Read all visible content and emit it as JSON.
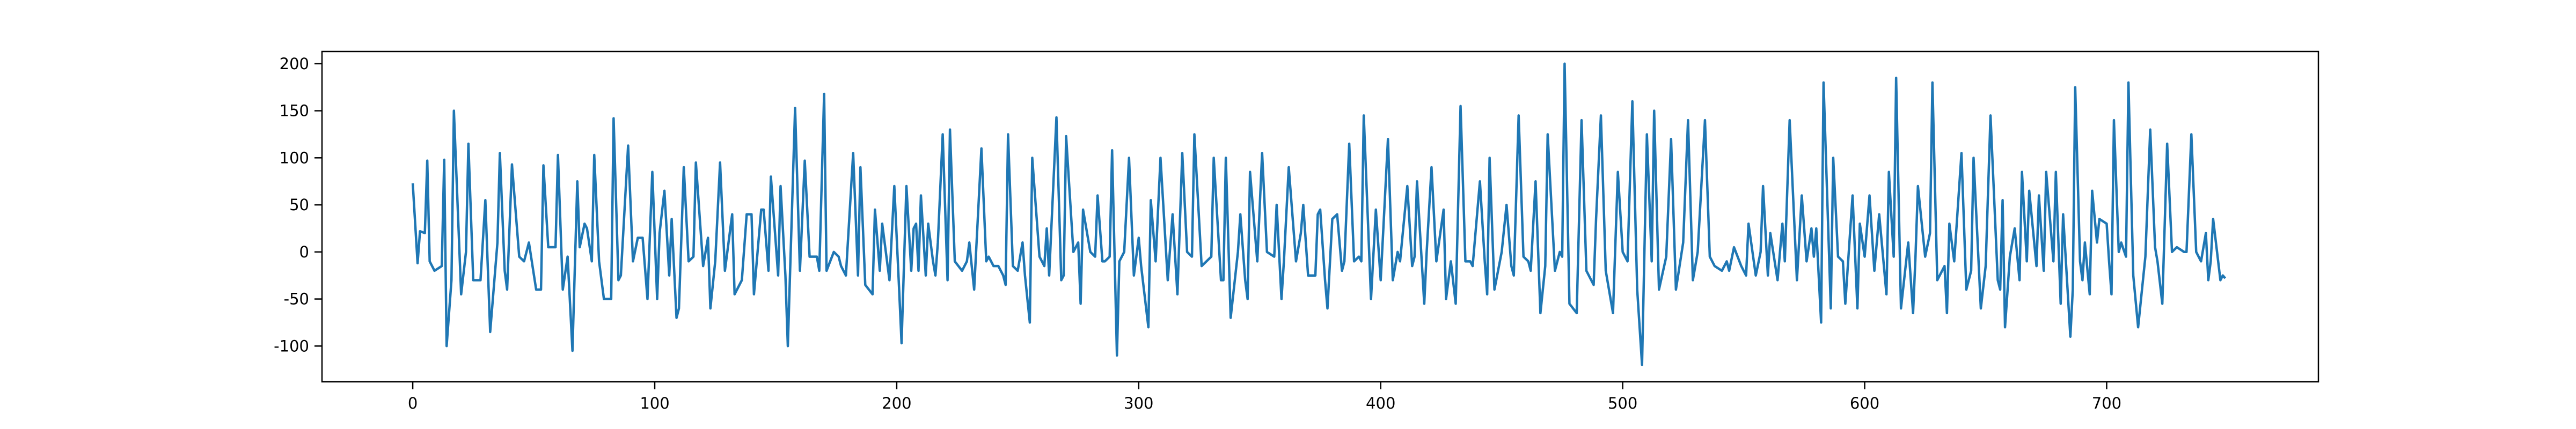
{
  "chart_data": {
    "type": "line",
    "color": "#1f77b4",
    "xlim": [
      -37.5,
      787.5
    ],
    "ylim": [
      -138,
      213
    ],
    "xticks": [
      0,
      100,
      200,
      300,
      400,
      500,
      600,
      700
    ],
    "yticks": [
      -100,
      -50,
      0,
      50,
      100,
      150,
      200
    ],
    "x": [
      0,
      2,
      3,
      5,
      6,
      7,
      9,
      12,
      13,
      14,
      16,
      17,
      20,
      22,
      23,
      25,
      28,
      30,
      32,
      35,
      36,
      38,
      39,
      41,
      44,
      46,
      48,
      51,
      53,
      54,
      56,
      59,
      60,
      62,
      64,
      66,
      68,
      69,
      71,
      72,
      74,
      75,
      77,
      79,
      82,
      83,
      85,
      86,
      89,
      91,
      93,
      95,
      97,
      99,
      101,
      102,
      104,
      106,
      107,
      109,
      110,
      112,
      114,
      116,
      117,
      120,
      122,
      123,
      125,
      127,
      129,
      131,
      132,
      133,
      136,
      138,
      140,
      141,
      144,
      145,
      147,
      148,
      151,
      152,
      154,
      155,
      158,
      160,
      162,
      164,
      167,
      168,
      170,
      171,
      174,
      176,
      177,
      179,
      182,
      184,
      185,
      187,
      190,
      191,
      193,
      194,
      197,
      198,
      199,
      201,
      202,
      204,
      206,
      207,
      208,
      209,
      210,
      212,
      213,
      215,
      216,
      217,
      219,
      221,
      222,
      224,
      227,
      229,
      230,
      232,
      235,
      237,
      238,
      240,
      242,
      244,
      245,
      246,
      248,
      250,
      252,
      253,
      255,
      256,
      259,
      261,
      262,
      263,
      266,
      268,
      269,
      270,
      273,
      275,
      276,
      277,
      280,
      282,
      283,
      285,
      286,
      288,
      289,
      291,
      292,
      294,
      296,
      298,
      300,
      301,
      304,
      305,
      307,
      309,
      312,
      314,
      316,
      318,
      320,
      322,
      323,
      326,
      328,
      330,
      331,
      334,
      335,
      336,
      338,
      341,
      342,
      344,
      345,
      346,
      349,
      351,
      353,
      356,
      357,
      359,
      360,
      362,
      365,
      367,
      368,
      370,
      373,
      374,
      375,
      377,
      378,
      380,
      382,
      384,
      385,
      387,
      389,
      391,
      392,
      393,
      396,
      398,
      400,
      403,
      405,
      407,
      408,
      411,
      413,
      414,
      415,
      418,
      419,
      421,
      423,
      426,
      427,
      429,
      431,
      433,
      435,
      437,
      438,
      441,
      443,
      444,
      445,
      447,
      450,
      452,
      454,
      455,
      457,
      459,
      461,
      462,
      464,
      466,
      468,
      469,
      472,
      474,
      475,
      476,
      478,
      481,
      483,
      485,
      488,
      489,
      491,
      493,
      496,
      498,
      500,
      502,
      504,
      506,
      508,
      510,
      512,
      513,
      515,
      518,
      520,
      522,
      525,
      527,
      529,
      531,
      534,
      536,
      538,
      541,
      543,
      544,
      546,
      549,
      551,
      552,
      555,
      557,
      558,
      560,
      561,
      564,
      566,
      567,
      569,
      572,
      574,
      576,
      578,
      579,
      580,
      582,
      583,
      586,
      587,
      589,
      591,
      592,
      595,
      597,
      598,
      600,
      602,
      604,
      606,
      609,
      610,
      612,
      613,
      615,
      618,
      620,
      621,
      622,
      625,
      627,
      628,
      630,
      633,
      634,
      635,
      637,
      640,
      642,
      644,
      645,
      648,
      650,
      652,
      655,
      656,
      657,
      658,
      660,
      662,
      664,
      665,
      667,
      668,
      671,
      672,
      674,
      675,
      678,
      679,
      681,
      682,
      685,
      686,
      687,
      689,
      690,
      691,
      693,
      694,
      696,
      697,
      700,
      701,
      702,
      703,
      705,
      706,
      708,
      709,
      711,
      713,
      716,
      718,
      720,
      721,
      723,
      725,
      727,
      729,
      732,
      733,
      735,
      737,
      739,
      741,
      742,
      743,
      744,
      747,
      748,
      749
    ],
    "values": [
      73,
      -12,
      22,
      20,
      97,
      -10,
      -20,
      -15,
      98,
      -100,
      -30,
      150,
      -45,
      0,
      115,
      -30,
      -30,
      55,
      -85,
      10,
      105,
      -20,
      -40,
      93,
      -5,
      -10,
      10,
      -40,
      -40,
      92,
      5,
      5,
      103,
      -40,
      -5,
      -105,
      75,
      5,
      30,
      25,
      -10,
      103,
      -10,
      -50,
      -50,
      142,
      -30,
      -25,
      113,
      -10,
      15,
      15,
      -50,
      85,
      -50,
      20,
      65,
      -25,
      35,
      -70,
      -60,
      90,
      -10,
      -5,
      95,
      -15,
      15,
      -60,
      -10,
      95,
      -20,
      20,
      40,
      -45,
      -30,
      40,
      40,
      -45,
      45,
      45,
      -20,
      80,
      -25,
      70,
      -25,
      -100,
      153,
      -20,
      97,
      -5,
      -5,
      -20,
      168,
      -20,
      0,
      -5,
      -15,
      -25,
      105,
      -25,
      90,
      -35,
      -45,
      45,
      -20,
      30,
      -30,
      20,
      70,
      -40,
      -97,
      70,
      -20,
      25,
      30,
      -20,
      60,
      -25,
      30,
      -10,
      -25,
      10,
      125,
      -30,
      130,
      -10,
      -20,
      -10,
      10,
      -40,
      110,
      -10,
      -5,
      -15,
      -15,
      -25,
      -35,
      125,
      -15,
      -20,
      10,
      -25,
      -75,
      100,
      -5,
      -15,
      25,
      -25,
      143,
      -30,
      -25,
      123,
      0,
      10,
      -55,
      45,
      0,
      -5,
      60,
      -10,
      -10,
      -5,
      108,
      -110,
      -10,
      0,
      100,
      -25,
      15,
      -15,
      -80,
      55,
      -10,
      100,
      -30,
      40,
      -45,
      105,
      0,
      -5,
      125,
      -15,
      -10,
      -5,
      100,
      -30,
      -30,
      100,
      -70,
      0,
      40,
      -30,
      -50,
      85,
      -10,
      105,
      0,
      -5,
      50,
      -50,
      -10,
      90,
      -10,
      20,
      50,
      -25,
      -25,
      40,
      45,
      -30,
      -60,
      35,
      40,
      -20,
      -10,
      115,
      -10,
      -5,
      -10,
      145,
      -50,
      45,
      -30,
      120,
      -30,
      0,
      -10,
      70,
      -15,
      -5,
      75,
      -55,
      0,
      90,
      -10,
      45,
      -50,
      -10,
      -55,
      155,
      -10,
      -10,
      -15,
      75,
      -10,
      -45,
      100,
      -40,
      0,
      50,
      -15,
      -25,
      145,
      -5,
      -10,
      -20,
      75,
      -65,
      -15,
      125,
      -20,
      0,
      -5,
      200,
      -55,
      -65,
      140,
      -20,
      -35,
      35,
      145,
      -20,
      -65,
      85,
      0,
      -10,
      160,
      -40,
      -120,
      125,
      -10,
      150,
      -40,
      -5,
      120,
      -40,
      10,
      140,
      -30,
      0,
      140,
      -5,
      -15,
      -20,
      -10,
      -20,
      5,
      -15,
      -25,
      30,
      -25,
      0,
      70,
      -25,
      20,
      -30,
      30,
      -10,
      140,
      -30,
      60,
      -10,
      25,
      -5,
      25,
      -75,
      180,
      -60,
      100,
      -5,
      -10,
      -55,
      60,
      -60,
      30,
      -5,
      60,
      -20,
      40,
      -45,
      85,
      -5,
      185,
      -60,
      10,
      -65,
      -5,
      70,
      -5,
      20,
      180,
      -30,
      -15,
      -65,
      30,
      -10,
      105,
      -40,
      -20,
      100,
      -60,
      -15,
      145,
      -30,
      -40,
      55,
      -80,
      -5,
      25,
      -30,
      85,
      -10,
      65,
      -15,
      60,
      -20,
      85,
      -10,
      85,
      -55,
      40,
      -90,
      -40,
      175,
      -10,
      -30,
      10,
      -45,
      65,
      10,
      35,
      30,
      -10,
      -45,
      140,
      0,
      10,
      -5,
      180,
      -25,
      -80,
      -5,
      130,
      5,
      -10,
      -55,
      115,
      0,
      5,
      0,
      0,
      125,
      0,
      -10,
      20,
      -30,
      -10,
      35,
      -30,
      -25,
      -28
    ]
  }
}
